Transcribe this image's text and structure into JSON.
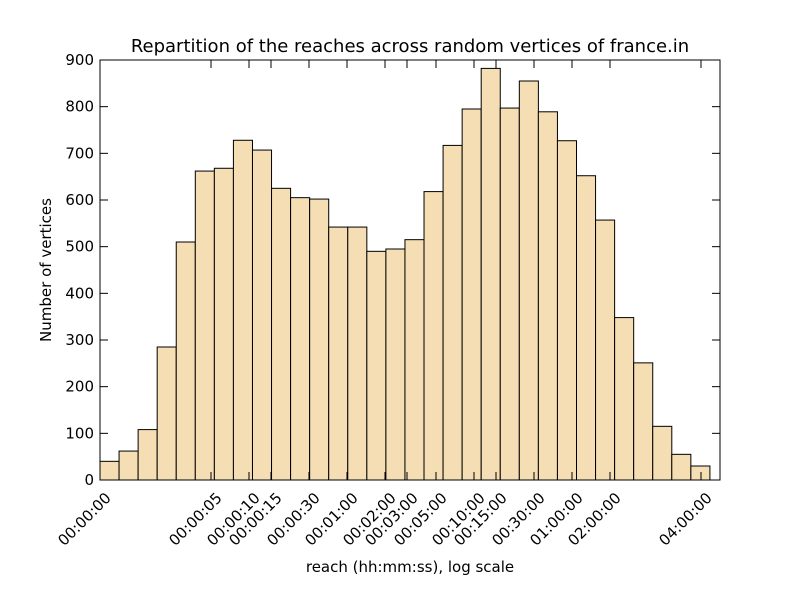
{
  "chart_data": {
    "type": "bar",
    "title": "Repartition of the reaches across random vertices of france.in",
    "xlabel": "reach (hh:mm:ss), log scale",
    "ylabel": "Number of vertices",
    "x_scale": "log",
    "ylim": [
      0,
      900
    ],
    "yticks": [
      0,
      100,
      200,
      300,
      400,
      500,
      600,
      700,
      800,
      900
    ],
    "xtick_labels": [
      "00:00:00",
      "00:00:05",
      "00:00:10",
      "00:00:15",
      "00:00:30",
      "00:01:00",
      "00:02:00",
      "00:03:00",
      "00:05:00",
      "00:10:00",
      "00:15:00",
      "00:30:00",
      "01:00:00",
      "02:00:00",
      "04:00:00"
    ],
    "bar_color": "#f5deb3",
    "values": [
      40,
      62,
      108,
      285,
      510,
      662,
      668,
      728,
      707,
      625,
      605,
      602,
      542,
      542,
      490,
      495,
      515,
      618,
      717,
      795,
      882,
      797,
      855,
      789,
      727,
      652,
      557,
      348,
      251,
      115,
      55,
      30
    ],
    "grid": false
  }
}
